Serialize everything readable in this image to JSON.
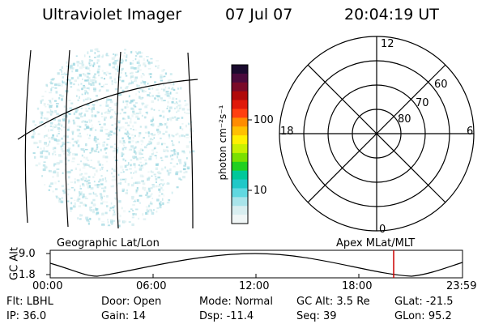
{
  "header": {
    "instrument": "Ultraviolet Imager",
    "date": "07 Jul 07",
    "time": "20:04:19 UT"
  },
  "colorbar": {
    "unit_label": "photon cm⁻²s⁻¹",
    "ticks": [
      "100",
      "10"
    ],
    "colors": [
      "#1a0a2e",
      "#4a0a3c",
      "#7a0a28",
      "#b00a0a",
      "#e01a0a",
      "#ff4010",
      "#ff8c00",
      "#ffc000",
      "#fff000",
      "#c8f000",
      "#7ae000",
      "#20d020",
      "#00c89a",
      "#20c8c8",
      "#60d8e0",
      "#a8e4ea",
      "#d8eef0",
      "#f0f6f6"
    ]
  },
  "polar_plot": {
    "mlt_labels": {
      "top": "12",
      "right": "6",
      "bottom": "0",
      "left": "18"
    },
    "lat_labels": [
      "60",
      "70",
      "80"
    ]
  },
  "map_grid": {
    "label_left": "Geographic Lat/Lon",
    "label_right": "Apex MLat/MLT"
  },
  "altitude_panel": {
    "axis_label": "GC Alt",
    "y_ticks": [
      "9.0",
      "1.8"
    ],
    "x_ticks": [
      "00:00",
      "06:00",
      "12:00",
      "18:00",
      "23:59"
    ],
    "marker_color": "#cc0000"
  },
  "status": {
    "row1": [
      {
        "key": "Flt:",
        "value": "LBHL"
      },
      {
        "key": "Door:",
        "value": "Open"
      },
      {
        "key": "Mode:",
        "value": "Normal"
      },
      {
        "key": "GC Alt:",
        "value": "3.5 Re"
      },
      {
        "key": "GLat:",
        "value": "-21.5"
      }
    ],
    "row2": [
      {
        "key": "IP:",
        "value": "36.0"
      },
      {
        "key": "Gain:",
        "value": "14"
      },
      {
        "key": "Dsp:",
        "value": "-11.4"
      },
      {
        "key": "Seq:",
        "value": "39"
      },
      {
        "key": "GLon:",
        "value": "95.2"
      }
    ]
  }
}
